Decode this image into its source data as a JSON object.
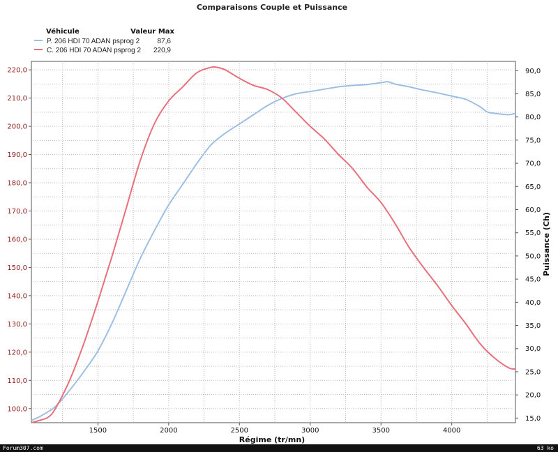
{
  "chart_data": {
    "type": "line",
    "title": "Comparaisons Couple et Puissance",
    "xlabel": "Régime (tr/mn)",
    "ylabel_right": "Puissance (Ch)",
    "xlim": [
      1030,
      4450
    ],
    "ylim_left": [
      95,
      223
    ],
    "ylim_right": [
      14,
      92
    ],
    "x_ticks": [
      1500,
      2000,
      2500,
      3000,
      3500,
      4000
    ],
    "x_tick_labels": [
      "1500",
      "2000",
      "2500",
      "3000",
      "3500",
      "4000"
    ],
    "y_left_ticks": [
      100,
      110,
      120,
      130,
      140,
      150,
      160,
      170,
      180,
      190,
      200,
      210,
      220
    ],
    "y_left_tick_labels": [
      "100,0",
      "110,0",
      "120,0",
      "130,0",
      "140,0",
      "150,0",
      "160,0",
      "170,0",
      "180,0",
      "190,0",
      "200,0",
      "210,0",
      "220,0"
    ],
    "y_right_ticks": [
      15,
      20,
      25,
      30,
      35,
      40,
      45,
      50,
      55,
      60,
      65,
      70,
      75,
      80,
      85,
      90
    ],
    "y_right_tick_labels": [
      "15,0",
      "20,0",
      "25,0",
      "30,0",
      "35,0",
      "40,0",
      "45,0",
      "50,0",
      "55,0",
      "60,0",
      "65,0",
      "70,0",
      "75,0",
      "80,0",
      "85,0",
      "90,0"
    ],
    "grid": true,
    "legend": {
      "header_vehicle": "Véhicule",
      "header_max": "Valeur Max",
      "entries": [
        {
          "name": "P. 206 HDI 70 ADAN psprog 2",
          "max": "87,6",
          "color": "#9dbfe3"
        },
        {
          "name": "C. 206 HDI 70 ADAN psprog 2",
          "max": "220,9",
          "color": "#e8707a"
        }
      ]
    },
    "series": [
      {
        "name": "P. 206 HDI 70 ADAN psprog 2",
        "axis": "right",
        "color": "#9dbfe3",
        "x": [
          1030,
          1100,
          1200,
          1300,
          1400,
          1500,
          1600,
          1700,
          1800,
          1900,
          2000,
          2100,
          2200,
          2300,
          2400,
          2500,
          2600,
          2700,
          2800,
          2900,
          3000,
          3100,
          3200,
          3300,
          3400,
          3500,
          3550,
          3600,
          3700,
          3800,
          3900,
          4000,
          4100,
          4200,
          4250,
          4300,
          4400,
          4450
        ],
        "values": [
          14.5,
          15.5,
          17.5,
          21,
          25,
          29.5,
          35.5,
          42.5,
          49.5,
          55.5,
          61,
          65.5,
          70,
          74,
          76.5,
          78.5,
          80.5,
          82.5,
          84,
          85,
          85.5,
          86,
          86.5,
          86.8,
          87,
          87.4,
          87.6,
          87.1,
          86.5,
          85.8,
          85.2,
          84.5,
          83.8,
          82.2,
          81.1,
          80.8,
          80.5,
          80.8
        ]
      },
      {
        "name": "C. 206 HDI 70 ADAN psprog 2",
        "axis": "left",
        "color": "#e8707a",
        "x": [
          1030,
          1100,
          1150,
          1200,
          1300,
          1400,
          1500,
          1600,
          1700,
          1800,
          1900,
          2000,
          2100,
          2200,
          2300,
          2350,
          2400,
          2500,
          2600,
          2700,
          2800,
          2900,
          3000,
          3100,
          3200,
          3300,
          3400,
          3500,
          3600,
          3700,
          3800,
          3900,
          4000,
          4100,
          4200,
          4300,
          4400,
          4450
        ],
        "values": [
          95,
          96,
          97,
          100,
          110,
          123,
          138,
          154,
          171,
          188,
          201,
          209,
          214,
          219,
          220.9,
          220.8,
          220,
          217,
          214.5,
          213,
          210,
          205,
          200,
          195.5,
          190,
          185,
          178.5,
          173,
          165.5,
          157,
          150,
          143.5,
          136.5,
          130,
          123,
          118,
          114.5,
          114
        ]
      }
    ]
  },
  "footer": {
    "left": "Forum307.com",
    "right": "63 ko"
  }
}
